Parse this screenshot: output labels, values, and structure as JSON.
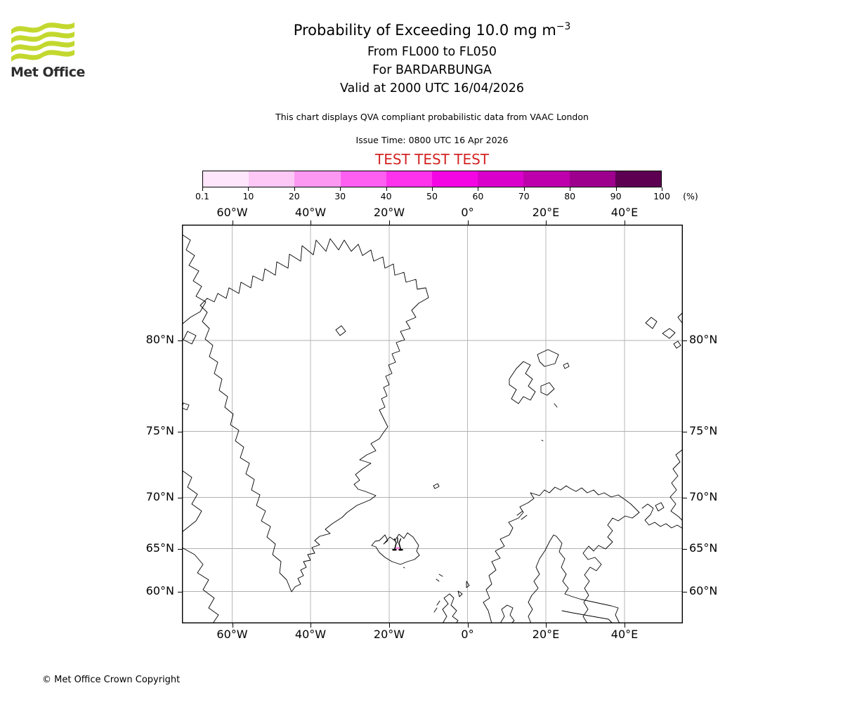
{
  "logo": {
    "brand": "Met Office",
    "wave_color": "#c3d82e"
  },
  "header": {
    "title_main": "Probability of Exceeding 10.0 mg m",
    "title_sup": "−3",
    "subtitle1": "From FL000 to FL050",
    "subtitle2": "For BARDARBUNGA",
    "subtitle3": "Valid at 2000 UTC 16/04/2026",
    "note": "This chart displays QVA compliant probabilistic data from VAAC London",
    "issue_time": "Issue Time: 0800 UTC 16 Apr 2026",
    "test_banner": "TEST TEST TEST",
    "test_color": "#d32424"
  },
  "colorbar": {
    "unit_label": "(%)",
    "end_label": "100",
    "stops": [
      {
        "label": "0.1",
        "color": "#fee6fc"
      },
      {
        "label": "10",
        "color": "#fdc7f6"
      },
      {
        "label": "20",
        "color": "#fd98f2"
      },
      {
        "label": "30",
        "color": "#fe5ff1"
      },
      {
        "label": "40",
        "color": "#fe32ec"
      },
      {
        "label": "50",
        "color": "#f406e4"
      },
      {
        "label": "60",
        "color": "#da00cb"
      },
      {
        "label": "70",
        "color": "#bd00ab"
      },
      {
        "label": "80",
        "color": "#9e008e"
      },
      {
        "label": "90",
        "color": "#5d0052"
      }
    ]
  },
  "map": {
    "lon_labels": [
      "60°W",
      "40°W",
      "20°W",
      "0°",
      "20°E",
      "40°E"
    ],
    "lat_labels": [
      "80°N",
      "75°N",
      "70°N",
      "65°N",
      "60°N"
    ],
    "volcano": {
      "symbol": "volcano-eruption-icon"
    },
    "grid_color": "#b0b0b0"
  },
  "footer": {
    "copyright": "© Met Office Crown Copyright"
  },
  "chart_data": {
    "type": "map",
    "title": "Probability of Exceeding 10.0 mg m−3",
    "region": "North Atlantic / Nordic seas (Greenland, Iceland, Svalbard, Scandinavia)",
    "colorbar_percent_boundaries": [
      0.1,
      10,
      20,
      30,
      40,
      50,
      60,
      70,
      80,
      90,
      100
    ],
    "colorbar_unit": "%",
    "lon_gridlines_deg": [
      -60,
      -40,
      -20,
      0,
      20,
      40
    ],
    "lat_gridlines_deg": [
      80,
      75,
      70,
      65,
      60
    ],
    "probability_shading_present": false,
    "volcano_marker": {
      "name": "BARDARBUNGA",
      "approx_lat": 64.6,
      "approx_lon": -17.5
    }
  }
}
